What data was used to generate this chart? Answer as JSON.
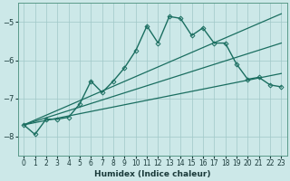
{
  "xlabel": "Humidex (Indice chaleur)",
  "ylabel": "",
  "xlim": [
    -0.5,
    23.5
  ],
  "ylim": [
    -8.5,
    -4.5
  ],
  "background_color": "#cce8e8",
  "grid_color": "#a0c8c8",
  "line_color": "#1a6e60",
  "xticks": [
    0,
    1,
    2,
    3,
    4,
    5,
    6,
    7,
    8,
    9,
    10,
    11,
    12,
    13,
    14,
    15,
    16,
    17,
    18,
    19,
    20,
    21,
    22,
    23
  ],
  "yticks": [
    -8,
    -7,
    -6,
    -5
  ],
  "series": [
    {
      "x": [
        0,
        1,
        2,
        3,
        4,
        5,
        6,
        7,
        8,
        9,
        10,
        11,
        12,
        13,
        14,
        15,
        16,
        17,
        18,
        19,
        20,
        21,
        22,
        23
      ],
      "y": [
        -7.7,
        -7.95,
        -7.55,
        -7.55,
        -7.5,
        -7.15,
        -6.55,
        -6.85,
        -6.55,
        -6.2,
        -5.75,
        -5.1,
        -5.55,
        -4.85,
        -4.9,
        -5.35,
        -5.15,
        -5.55,
        -5.55,
        -6.1,
        -6.5,
        -6.45,
        -6.65,
        -6.7
      ],
      "marker": "D",
      "markersize": 2.5,
      "linewidth": 1.0,
      "has_marker": true
    },
    {
      "x": [
        0,
        23
      ],
      "y": [
        -7.7,
        -4.78
      ],
      "marker": null,
      "markersize": 0,
      "linewidth": 0.9,
      "has_marker": false
    },
    {
      "x": [
        0,
        23
      ],
      "y": [
        -7.7,
        -5.55
      ],
      "marker": null,
      "markersize": 0,
      "linewidth": 0.9,
      "has_marker": false
    },
    {
      "x": [
        0,
        23
      ],
      "y": [
        -7.7,
        -6.35
      ],
      "marker": null,
      "markersize": 0,
      "linewidth": 0.9,
      "has_marker": false
    }
  ]
}
